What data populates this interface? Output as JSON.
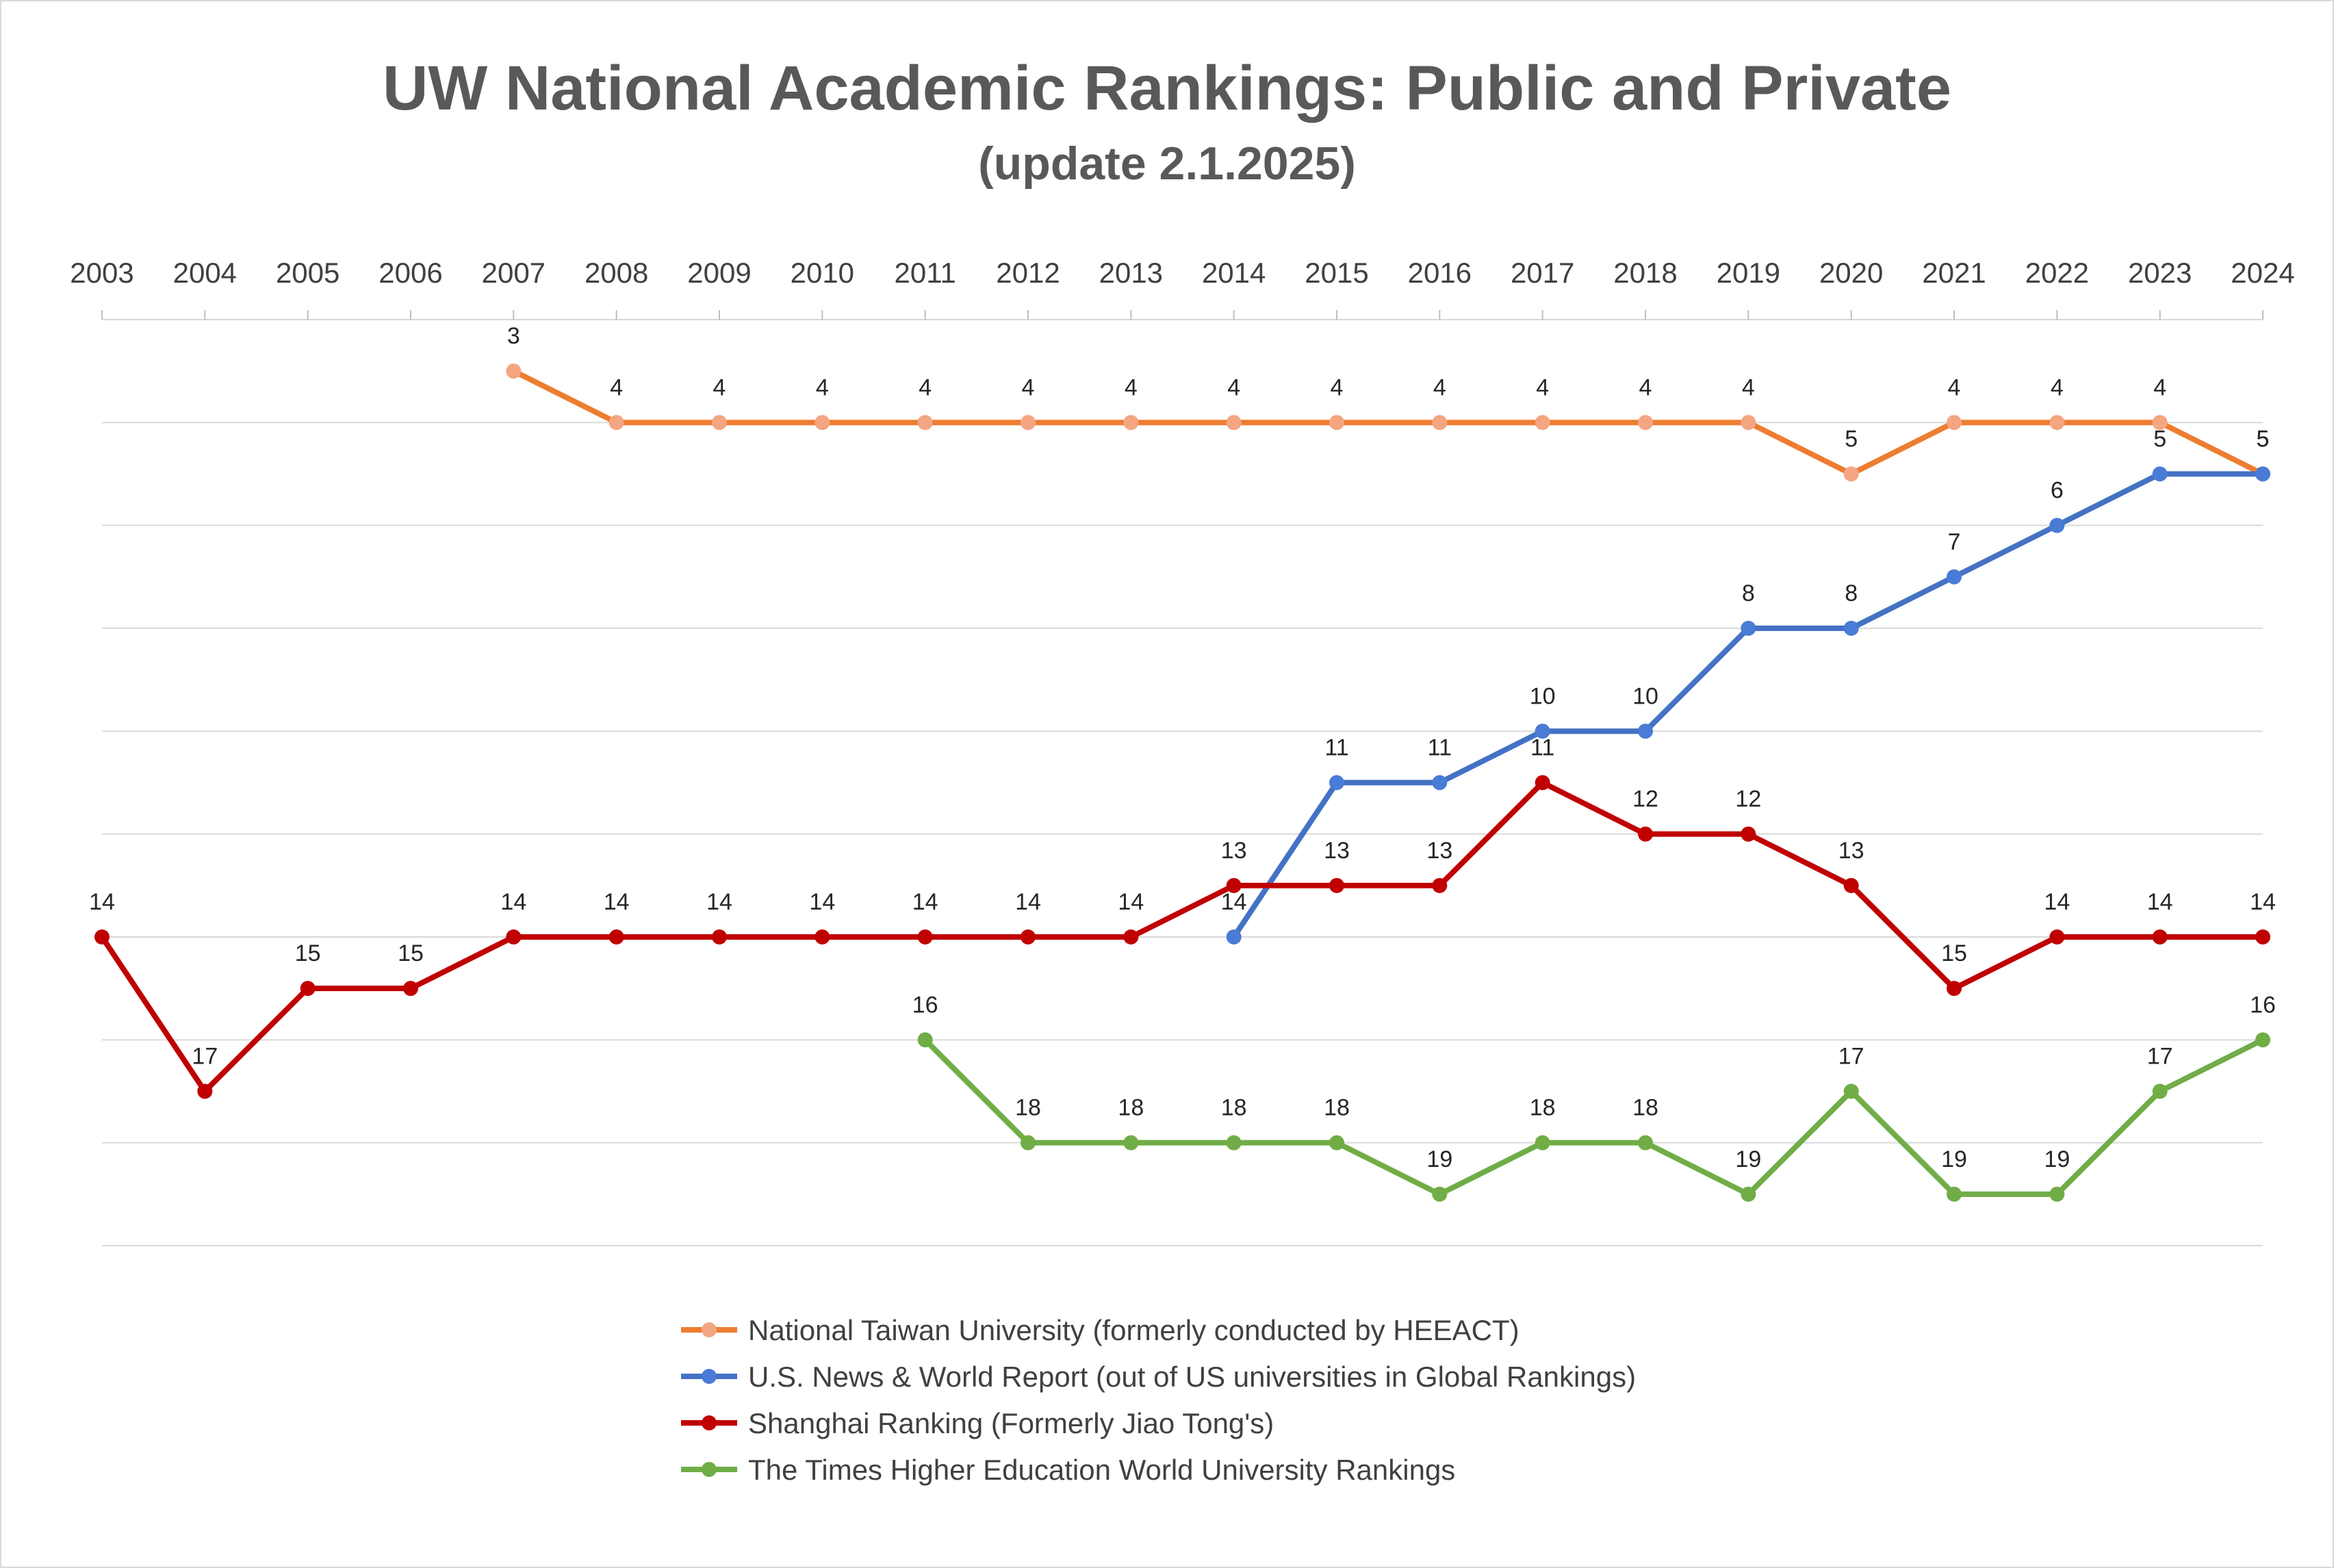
{
  "chart_data": {
    "type": "line",
    "title": "UW National Academic Rankings: Public and Private",
    "subtitle": "(update 2.1.2025)",
    "x": [
      "2003",
      "2004",
      "2005",
      "2006",
      "2007",
      "2008",
      "2009",
      "2010",
      "2011",
      "2012",
      "2013",
      "2014",
      "2015",
      "2016",
      "2017",
      "2018",
      "2019",
      "2020",
      "2021",
      "2022",
      "2023",
      "2024"
    ],
    "y_axis": {
      "reversed": true,
      "range": [
        2,
        20
      ],
      "grid": true,
      "tick_labels_shown": false
    },
    "x_axis_position": "top",
    "legend_position": "bottom",
    "series": [
      {
        "name": "National Taiwan University (formerly conducted by HEEACT)",
        "line_color": "#ed7d31",
        "marker_color": "#f4a582",
        "values": [
          null,
          null,
          null,
          null,
          3,
          4,
          4,
          4,
          4,
          4,
          4,
          4,
          4,
          4,
          4,
          4,
          4,
          5,
          4,
          4,
          4,
          5
        ]
      },
      {
        "name": "U.S. News & World Report (out of US universities in Global Rankings)",
        "line_color": "#4472c4",
        "marker_color": "#4a7bd6",
        "values": [
          null,
          null,
          null,
          null,
          null,
          null,
          null,
          null,
          null,
          null,
          null,
          14,
          11,
          11,
          10,
          10,
          8,
          8,
          7,
          6,
          5,
          5
        ]
      },
      {
        "name": "Shanghai Ranking (Formerly Jiao Tong's)",
        "line_color": "#c00000",
        "marker_color": "#c00000",
        "values": [
          14,
          17,
          15,
          15,
          14,
          14,
          14,
          14,
          14,
          14,
          14,
          13,
          13,
          13,
          11,
          12,
          12,
          13,
          15,
          14,
          14,
          14
        ]
      },
      {
        "name": "The Times Higher Education World University Rankings",
        "line_color": "#70ad47",
        "marker_color": "#70ad47",
        "values": [
          null,
          null,
          null,
          null,
          null,
          null,
          null,
          null,
          16,
          18,
          18,
          18,
          18,
          19,
          18,
          18,
          19,
          17,
          19,
          19,
          17,
          16
        ]
      }
    ]
  }
}
